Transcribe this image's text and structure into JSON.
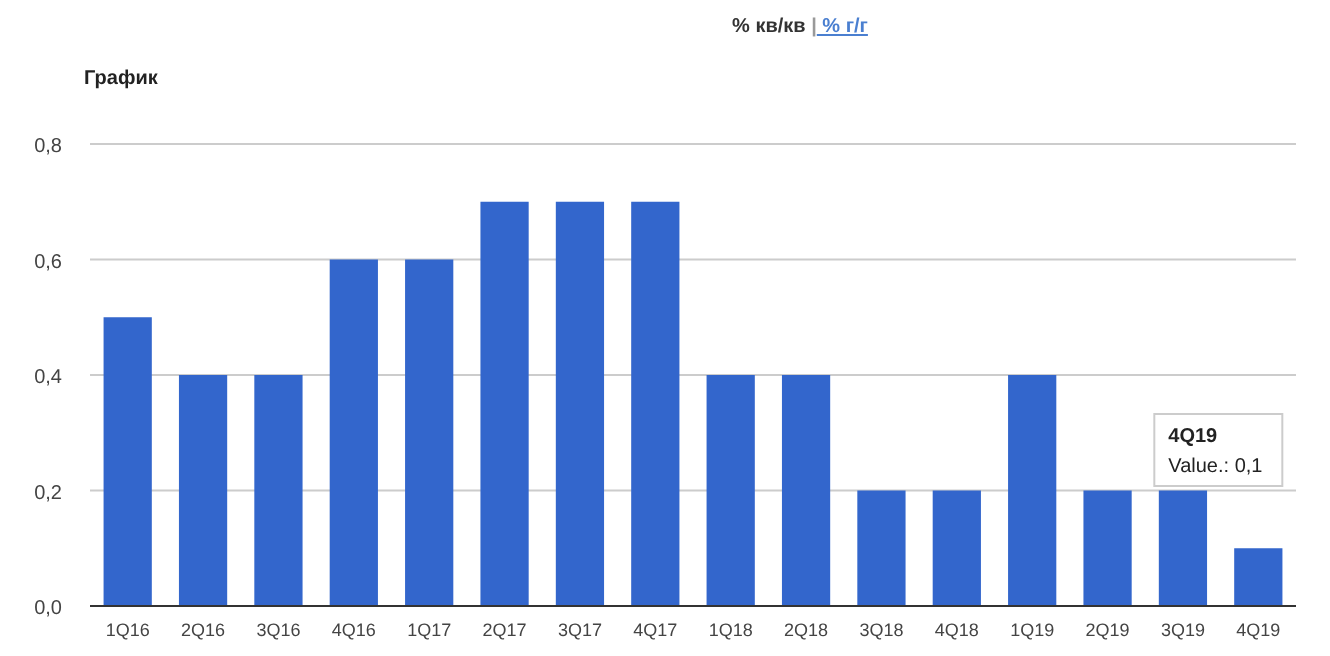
{
  "chart_data": {
    "type": "bar",
    "title": "График",
    "subtitle": "% кв/кв | % г/г",
    "categories": [
      "1Q16",
      "2Q16",
      "3Q16",
      "4Q16",
      "1Q17",
      "2Q17",
      "3Q17",
      "4Q17",
      "1Q18",
      "2Q18",
      "3Q18",
      "4Q18",
      "1Q19",
      "2Q19",
      "3Q19",
      "4Q19"
    ],
    "values": [
      0.5,
      0.4,
      0.4,
      0.6,
      0.6,
      0.7,
      0.7,
      0.7,
      0.4,
      0.4,
      0.2,
      0.2,
      0.4,
      0.2,
      0.2,
      0.1
    ],
    "color": "#3366cc",
    "ylim": [
      0,
      0.8
    ],
    "yticks": [
      {
        "value": 0,
        "label": "0,0"
      },
      {
        "value": 0.2,
        "label": "0,2"
      },
      {
        "value": 0.4,
        "label": "0,4"
      },
      {
        "value": 0.6,
        "label": "0,6"
      },
      {
        "value": 0.8,
        "label": "0,8"
      }
    ],
    "grid": "y",
    "annotations": [
      "4Q19",
      "Value.: 0,1"
    ]
  }
}
